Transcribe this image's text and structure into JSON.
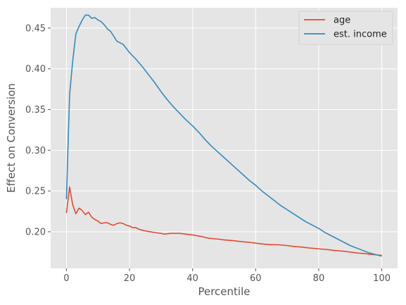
{
  "chart_data": {
    "type": "line",
    "xlabel": "Percentile",
    "ylabel": "Effect on Conversion",
    "xlim": [
      -5,
      105
    ],
    "ylim": [
      0.155,
      0.475
    ],
    "xticks": [
      0,
      20,
      40,
      60,
      80,
      100
    ],
    "yticks": [
      0.2,
      0.25,
      0.3,
      0.35,
      0.4,
      0.45
    ],
    "ytick_labels": [
      "0.20",
      "0.25",
      "0.30",
      "0.35",
      "0.40",
      "0.45"
    ],
    "grid": true,
    "legend_position": "top-right",
    "background_color": "#e5e5e5",
    "series": [
      {
        "name": "age",
        "color": "#e24a33",
        "points": [
          [
            0,
            0.223
          ],
          [
            1,
            0.255
          ],
          [
            2,
            0.233
          ],
          [
            3,
            0.222
          ],
          [
            4,
            0.229
          ],
          [
            5,
            0.226
          ],
          [
            6,
            0.221
          ],
          [
            7,
            0.224
          ],
          [
            8,
            0.218
          ],
          [
            9,
            0.215
          ],
          [
            10,
            0.213
          ],
          [
            11,
            0.21
          ],
          [
            12,
            0.211
          ],
          [
            13,
            0.211
          ],
          [
            14,
            0.209
          ],
          [
            15,
            0.208
          ],
          [
            16,
            0.21
          ],
          [
            17,
            0.211
          ],
          [
            18,
            0.21
          ],
          [
            19,
            0.208
          ],
          [
            20,
            0.207
          ],
          [
            21,
            0.205
          ],
          [
            22,
            0.205
          ],
          [
            23,
            0.203
          ],
          [
            25,
            0.201
          ],
          [
            28,
            0.199
          ],
          [
            30,
            0.198
          ],
          [
            31,
            0.197
          ],
          [
            33,
            0.198
          ],
          [
            36,
            0.198
          ],
          [
            38,
            0.197
          ],
          [
            40,
            0.196
          ],
          [
            43,
            0.194
          ],
          [
            45,
            0.192
          ],
          [
            48,
            0.191
          ],
          [
            50,
            0.19
          ],
          [
            53,
            0.189
          ],
          [
            55,
            0.188
          ],
          [
            58,
            0.187
          ],
          [
            60,
            0.186
          ],
          [
            62,
            0.185
          ],
          [
            65,
            0.184
          ],
          [
            67,
            0.184
          ],
          [
            70,
            0.183
          ],
          [
            72,
            0.182
          ],
          [
            75,
            0.181
          ],
          [
            77,
            0.18
          ],
          [
            80,
            0.179
          ],
          [
            83,
            0.178
          ],
          [
            85,
            0.177
          ],
          [
            88,
            0.176
          ],
          [
            90,
            0.175
          ],
          [
            92,
            0.174
          ],
          [
            95,
            0.173
          ],
          [
            97,
            0.172
          ],
          [
            100,
            0.171
          ]
        ]
      },
      {
        "name": "est. income",
        "color": "#348abd",
        "points": [
          [
            0,
            0.24
          ],
          [
            1,
            0.368
          ],
          [
            2,
            0.41
          ],
          [
            3,
            0.443
          ],
          [
            4,
            0.452
          ],
          [
            5,
            0.46
          ],
          [
            6,
            0.466
          ],
          [
            7,
            0.466
          ],
          [
            8,
            0.462
          ],
          [
            9,
            0.463
          ],
          [
            10,
            0.46
          ],
          [
            11,
            0.458
          ],
          [
            12,
            0.454
          ],
          [
            13,
            0.449
          ],
          [
            14,
            0.446
          ],
          [
            15,
            0.44
          ],
          [
            16,
            0.434
          ],
          [
            18,
            0.43
          ],
          [
            20,
            0.42
          ],
          [
            22,
            0.412
          ],
          [
            24,
            0.403
          ],
          [
            26,
            0.393
          ],
          [
            28,
            0.383
          ],
          [
            30,
            0.372
          ],
          [
            32,
            0.362
          ],
          [
            34,
            0.353
          ],
          [
            36,
            0.345
          ],
          [
            38,
            0.337
          ],
          [
            40,
            0.33
          ],
          [
            42,
            0.322
          ],
          [
            44,
            0.313
          ],
          [
            46,
            0.305
          ],
          [
            48,
            0.298
          ],
          [
            50,
            0.291
          ],
          [
            52,
            0.284
          ],
          [
            54,
            0.277
          ],
          [
            56,
            0.27
          ],
          [
            58,
            0.263
          ],
          [
            60,
            0.257
          ],
          [
            62,
            0.25
          ],
          [
            64,
            0.244
          ],
          [
            66,
            0.238
          ],
          [
            68,
            0.232
          ],
          [
            70,
            0.227
          ],
          [
            72,
            0.222
          ],
          [
            74,
            0.217
          ],
          [
            76,
            0.212
          ],
          [
            78,
            0.208
          ],
          [
            80,
            0.204
          ],
          [
            82,
            0.199
          ],
          [
            84,
            0.195
          ],
          [
            86,
            0.191
          ],
          [
            88,
            0.187
          ],
          [
            90,
            0.183
          ],
          [
            92,
            0.18
          ],
          [
            94,
            0.177
          ],
          [
            96,
            0.174
          ],
          [
            98,
            0.172
          ],
          [
            100,
            0.17
          ]
        ]
      }
    ]
  }
}
